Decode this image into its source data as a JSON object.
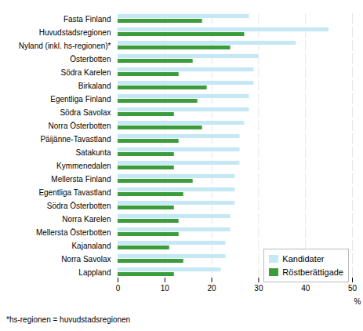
{
  "chart_data": {
    "type": "bar",
    "orientation": "horizontal",
    "categories": [
      "Fasta Finland",
      "Huvudstadsregionen",
      "Nyland (inkl. hs-regionen)*",
      "Österbotten",
      "Södra Karelen",
      "Birkaland",
      "Egentliga Finland",
      "Södra Savolax",
      "Norra Österbotten",
      "Päijänne-Tavastland",
      "Satakunta",
      "Kymmenedalen",
      "Mellersta Finland",
      "Egentliga Tavastland",
      "Södra Österbotten",
      "Norra Karelen",
      "Mellersta Österbotten",
      "Kajanaland",
      "Norra Savolax",
      "Lappland"
    ],
    "series": [
      {
        "name": "Kandidater",
        "color": "#c5e8f5",
        "values": [
          28,
          45,
          38,
          30,
          29,
          29,
          28,
          28,
          27,
          26,
          26,
          26,
          25,
          25,
          25,
          24,
          24,
          23,
          23,
          22
        ]
      },
      {
        "name": "Röstberättigade",
        "color": "#3a9c3a",
        "values": [
          18,
          27,
          24,
          16,
          13,
          19,
          17,
          12,
          18,
          13,
          12,
          12,
          16,
          14,
          12,
          13,
          13,
          11,
          14,
          12
        ]
      }
    ],
    "xlabel": "%",
    "xlim": [
      0,
      50
    ],
    "xticks": [
      0,
      10,
      20,
      30,
      40,
      50
    ],
    "grid": true,
    "legend": "lower right",
    "annotations": [
      "*hs-regionen = huvudstadsregionen"
    ]
  }
}
